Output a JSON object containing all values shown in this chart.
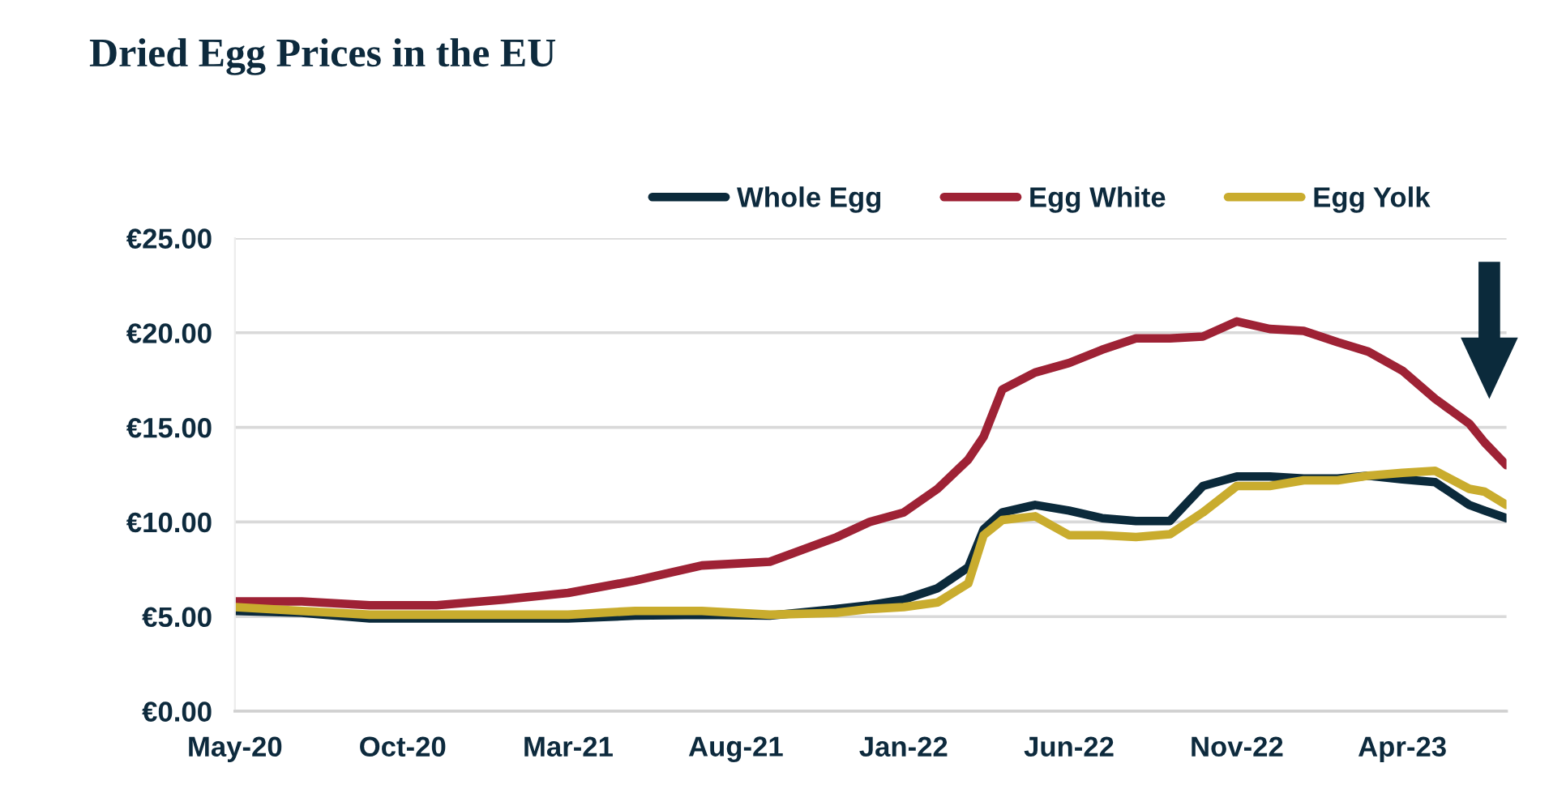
{
  "chart_data": {
    "type": "line",
    "title": "Dried Egg Prices in the EU",
    "x": [
      "2020-05",
      "2020-07",
      "2020-09",
      "2020-11",
      "2021-01",
      "2021-03",
      "2021-05",
      "2021-07",
      "2021-09",
      "2021-11",
      "2021-12",
      "2022-01",
      "2022-02",
      "2022-03",
      "2022-03-15",
      "2022-04",
      "2022-05",
      "2022-06",
      "2022-07",
      "2022-08",
      "2022-09",
      "2022-10",
      "2022-11",
      "2022-12",
      "2023-01",
      "2023-02",
      "2023-03",
      "2023-04",
      "2023-05",
      "2023-06",
      "2023-06-15",
      "2023-07-05"
    ],
    "series": [
      {
        "name": "Whole Egg",
        "color": "#0b2a3b",
        "values": [
          5.3,
          5.2,
          4.9,
          4.9,
          4.9,
          4.9,
          5.05,
          5.1,
          5.05,
          5.4,
          5.6,
          5.9,
          6.5,
          7.6,
          9.6,
          10.5,
          10.9,
          10.6,
          10.2,
          10.05,
          10.05,
          11.9,
          12.4,
          12.4,
          12.3,
          12.3,
          12.45,
          12.25,
          12.1,
          10.9,
          10.6,
          10.2
        ]
      },
      {
        "name": "Egg White",
        "color": "#9e2235",
        "values": [
          5.8,
          5.8,
          5.6,
          5.6,
          5.9,
          6.25,
          6.9,
          7.7,
          7.9,
          9.2,
          10.0,
          10.5,
          11.75,
          13.3,
          14.5,
          17.0,
          17.9,
          18.4,
          19.1,
          19.7,
          19.7,
          19.8,
          20.6,
          20.2,
          20.1,
          19.5,
          19.0,
          18.0,
          16.5,
          15.2,
          14.2,
          13.0
        ]
      },
      {
        "name": "Egg Yolk",
        "color": "#c9ac2e",
        "values": [
          5.5,
          5.3,
          5.1,
          5.1,
          5.1,
          5.1,
          5.3,
          5.3,
          5.1,
          5.2,
          5.4,
          5.5,
          5.75,
          6.75,
          9.3,
          10.1,
          10.3,
          9.3,
          9.3,
          9.2,
          9.35,
          10.5,
          11.9,
          11.9,
          12.2,
          12.2,
          12.45,
          12.6,
          12.7,
          11.75,
          11.6,
          10.9
        ]
      }
    ],
    "xlim": [
      "2020-05",
      "2023-07-05"
    ],
    "xticks": [
      {
        "value": "2020-05",
        "label": "May-20"
      },
      {
        "value": "2020-10",
        "label": "Oct-20"
      },
      {
        "value": "2021-03",
        "label": "Mar-21"
      },
      {
        "value": "2021-08",
        "label": "Aug-21"
      },
      {
        "value": "2022-01",
        "label": "Jan-22"
      },
      {
        "value": "2022-06",
        "label": "Jun-22"
      },
      {
        "value": "2022-11",
        "label": "Nov-22"
      },
      {
        "value": "2023-04",
        "label": "Apr-23"
      }
    ],
    "ylim": [
      0,
      25
    ],
    "yticks": [
      {
        "value": 0,
        "label": "€0.00"
      },
      {
        "value": 5,
        "label": "€5.00"
      },
      {
        "value": 10,
        "label": "€10.00"
      },
      {
        "value": 15,
        "label": "€15.00"
      },
      {
        "value": 20,
        "label": "€20.00"
      },
      {
        "value": 25,
        "label": "€25.00"
      }
    ],
    "grid": "y",
    "legend": "top right",
    "marker": "none",
    "line_style": "solid"
  }
}
